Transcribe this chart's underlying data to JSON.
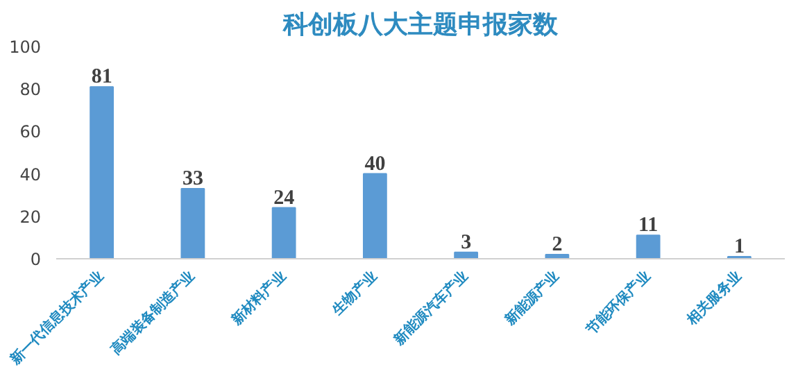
{
  "chart_data": {
    "type": "bar",
    "title": "科创板八大主题申报家数",
    "categories": [
      "新一代信息技术产业",
      "高端装备制造产业",
      "新材料产业",
      "生物产业",
      "新能源汽车产业",
      "新能源产业",
      "节能环保产业",
      "相关服务业"
    ],
    "values": [
      81,
      33,
      24,
      40,
      3,
      2,
      11,
      1
    ],
    "color": "#5b9bd5",
    "ylim": [
      0,
      100
    ],
    "yticks": [
      0,
      20,
      40,
      60,
      80,
      100
    ],
    "grid": false,
    "data_labels": true
  }
}
